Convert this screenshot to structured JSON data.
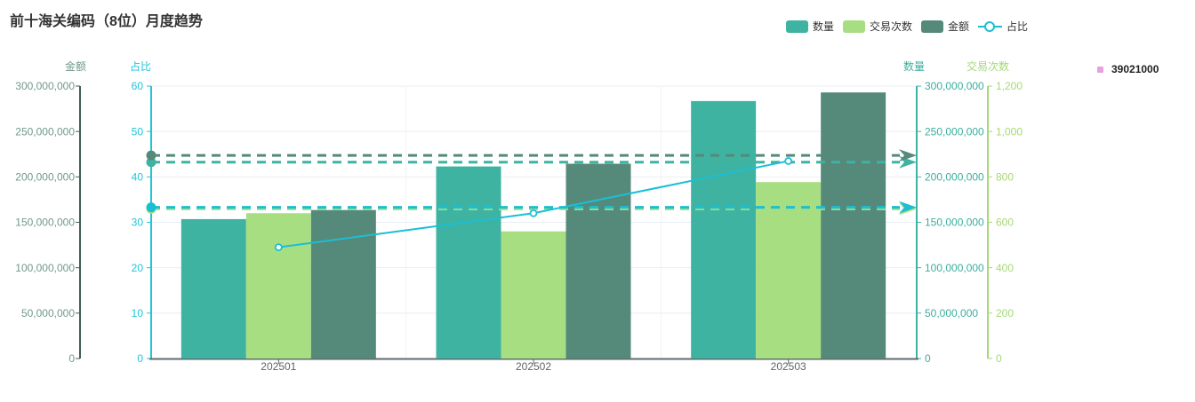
{
  "title": "前十海关编码（8位）月度趋势",
  "legend": {
    "items": [
      {
        "label": "数量",
        "type": "bar",
        "color": "#3FB3A2"
      },
      {
        "label": "交易次数",
        "type": "bar",
        "color": "#A7DE81"
      },
      {
        "label": "金额",
        "type": "bar",
        "color": "#55897A"
      },
      {
        "label": "占比",
        "type": "line",
        "color": "#1BBFD4"
      }
    ]
  },
  "side_legend": {
    "label": "39021000",
    "color": "#E5A2DC"
  },
  "chart_data": {
    "type": "bar+line",
    "categories": [
      "202501",
      "202502",
      "202503"
    ],
    "axes": [
      {
        "id": "amount",
        "title": "金额",
        "position": "left-outer",
        "min": 0,
        "max": 300000000,
        "tick_labels": [
          "0",
          "50,000,000",
          "100,000,000",
          "150,000,000",
          "200,000,000",
          "250,000,000",
          "300,000,000"
        ],
        "label_color": "#70998C",
        "line_color": "#3D6052"
      },
      {
        "id": "ratio",
        "title": "占比",
        "position": "left-inner",
        "min": 0,
        "max": 60,
        "tick_labels": [
          "0",
          "10",
          "20",
          "30",
          "40",
          "50",
          "60"
        ],
        "label_color": "#1FC5D9",
        "line_color": "#1FC5D9"
      },
      {
        "id": "qty",
        "title": "数量",
        "position": "right-inner",
        "min": 0,
        "max": 300000000,
        "tick_labels": [
          "0",
          "50,000,000",
          "100,000,000",
          "150,000,000",
          "200,000,000",
          "250,000,000",
          "300,000,000"
        ],
        "label_color": "#3AAE9E",
        "line_color": "#3FB3A2"
      },
      {
        "id": "txn",
        "title": "交易次数",
        "position": "right-outer",
        "min": 0,
        "max": 1200,
        "tick_labels": [
          "0",
          "200",
          "400",
          "600",
          "800",
          "1,000",
          "1,200"
        ],
        "label_color": "#A4D973",
        "line_color": "#A4D973"
      }
    ],
    "series": [
      {
        "id": "qty",
        "name": "数量",
        "type": "bar",
        "axis": "qty",
        "color": "#3FB3A2",
        "values": [
          153500000,
          211500000,
          283500000
        ],
        "average": 216166667
      },
      {
        "id": "txn",
        "name": "交易次数",
        "type": "bar",
        "axis": "txn",
        "color": "#A7DE81",
        "values": [
          640,
          560,
          777
        ],
        "average": 659
      },
      {
        "id": "amount",
        "name": "金额",
        "type": "bar",
        "axis": "amount",
        "color": "#55897A",
        "values": [
          163500000,
          214500000,
          293000000
        ],
        "average": 223666667
      },
      {
        "id": "ratio",
        "name": "占比",
        "type": "line",
        "axis": "ratio",
        "color": "#1BBFD4",
        "values": [
          24.5,
          32,
          43.5
        ],
        "average": 33.3
      }
    ],
    "marklines": "dashed average line per series, dot at left end, arrow at right end",
    "grid": "horizontal light gridlines at ticks, vertical light lines at category boundaries",
    "legend_position": "top-right",
    "x_label_color": "#5E646A",
    "x_axis_color": "#60696E",
    "grid_color": "#E9EEF3"
  }
}
